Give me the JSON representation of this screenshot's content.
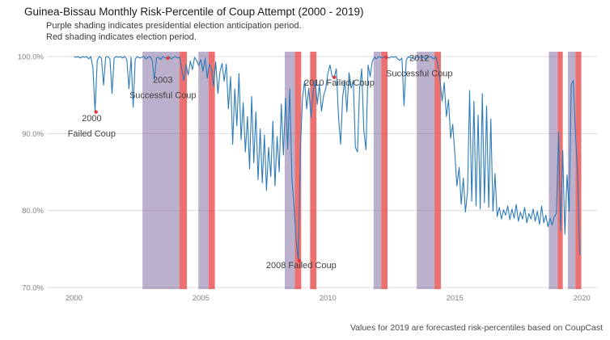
{
  "chart_data": {
    "type": "line",
    "title": "Guinea-Bissau Monthly Risk-Percentile of Coup Attempt (2000 - 2019)",
    "subtitle_line1": "Purple shading indicates presidential election anticipation period.",
    "subtitle_line2": "Red shading indicates election period.",
    "caption": "Values for 2019 are forecasted risk-percentiles based on CoupCast",
    "xlabel": "",
    "ylabel": "",
    "xlim": [
      1999,
      2020.6
    ],
    "ylim": [
      70,
      100
    ],
    "x_ticks": [
      2000,
      2005,
      2010,
      2015,
      2020
    ],
    "y_ticks": [
      "100.0%",
      "90.0%",
      "80.0%",
      "70.0%"
    ],
    "y_tick_values": [
      100,
      90,
      80,
      70
    ],
    "grid": "horizontal-only",
    "grid_color": "#dcdcdc",
    "line_color": "#2b7bb9",
    "event_dot_color": "#e4393c",
    "band_colors": {
      "purple": "rgba(106,81,145,0.45)",
      "red": "rgba(232,58,60,0.72)"
    },
    "series": {
      "name": "monthly-risk-percentile",
      "start_year": 2000,
      "interval_months": 1,
      "values": [
        100,
        99.9,
        100,
        99.8,
        100,
        99.9,
        100,
        99.7,
        100,
        98.5,
        92.8,
        99.5,
        100,
        99.8,
        96.3,
        99.9,
        100,
        99.7,
        95.2,
        99.8,
        100,
        99.9,
        100,
        99.8,
        100,
        99.6,
        95.8,
        99.9,
        93.4,
        99.7,
        100,
        99.8,
        99.9,
        100,
        99.7,
        99.9,
        100,
        99.5,
        97.0,
        99.8,
        99.9,
        99.6,
        100,
        99.8,
        99.9,
        100,
        99.7,
        99.9,
        100,
        99.8,
        99.9,
        98.2,
        96.9,
        99.0,
        97.6,
        99.4,
        98.3,
        99.9,
        99.5,
        98.8,
        99.6,
        98.1,
        99.8,
        97.2,
        99.0,
        98.4,
        96.1,
        99.3,
        95.2,
        98.0,
        99.1,
        96.8,
        99.0,
        93.2,
        97.4,
        88.6,
        95.8,
        91.0,
        97.8,
        89.2,
        94.0,
        87.6,
        92.2,
        85.4,
        94.8,
        86.2,
        92.8,
        84.0,
        90.6,
        83.6,
        89.8,
        82.6,
        88.2,
        84.4,
        91.6,
        83.2,
        89.6,
        85.0,
        93.8,
        87.2,
        94.6,
        88.0,
        95.8,
        84.2,
        80.6,
        76.2,
        73.5,
        87.8,
        94.6,
        96.8,
        93.2,
        95.9,
        92.1,
        95.4,
        96.9,
        93.8,
        96.4,
        92.9,
        94.9,
        95.9,
        97.8,
        98.9,
        97.4,
        97.3,
        98.4,
        92.2,
        88.6,
        94.8,
        96.9,
        92.8,
        97.9,
        95.9,
        96.9,
        88.2,
        87.6,
        95.9,
        98.4,
        90.4,
        87.9,
        98.9,
        97.4,
        99.4,
        99.9,
        99.7,
        100,
        99.9,
        99.8,
        100,
        99.9,
        99.8,
        100,
        99.9,
        100,
        99.7,
        99.5,
        99.8,
        93.6,
        99.5,
        100,
        99.8,
        99.9,
        99.6,
        100,
        99.9,
        99.8,
        100,
        99.7,
        99.9,
        100,
        99.9,
        99.7,
        100,
        98.9,
        96.9,
        94.2,
        96.6,
        92.2,
        94.4,
        89.4,
        91.2,
        87.4,
        83.2,
        85.6,
        80.8,
        84.2,
        79.8,
        82.4,
        95.6,
        81.2,
        94.2,
        80.6,
        92.4,
        80.2,
        95.2,
        81.0,
        93.6,
        80.4,
        91.9,
        79.9,
        84.8,
        79.2,
        80.4,
        78.9,
        80.1,
        79.4,
        80.6,
        78.8,
        80.2,
        79.0,
        80.8,
        78.6,
        79.8,
        78.9,
        80.4,
        78.4,
        79.6,
        78.9,
        80.2,
        78.6,
        79.9,
        78.2,
        80.6,
        78.4,
        79.4,
        77.9,
        79.0,
        78.1,
        79.2,
        79.6,
        90.2,
        77.4,
        87.8,
        76.9,
        84.6,
        79.9,
        96.4,
        96.9,
        89.9,
        84.9,
        74.2
      ]
    },
    "bands": [
      {
        "color": "purple",
        "x0": 2002.7,
        "x1": 2004.15
      },
      {
        "color": "red",
        "x0": 2004.15,
        "x1": 2004.45
      },
      {
        "color": "purple",
        "x0": 2004.9,
        "x1": 2005.3
      },
      {
        "color": "red",
        "x0": 2005.3,
        "x1": 2005.55
      },
      {
        "color": "purple",
        "x0": 2008.3,
        "x1": 2008.7
      },
      {
        "color": "red",
        "x0": 2008.7,
        "x1": 2008.95
      },
      {
        "color": "red",
        "x0": 2009.3,
        "x1": 2009.55
      },
      {
        "color": "purple",
        "x0": 2011.8,
        "x1": 2012.1
      },
      {
        "color": "red",
        "x0": 2012.1,
        "x1": 2012.35
      },
      {
        "color": "purple",
        "x0": 2013.5,
        "x1": 2014.2
      },
      {
        "color": "red",
        "x0": 2014.2,
        "x1": 2014.45
      },
      {
        "color": "purple",
        "x0": 2018.7,
        "x1": 2019.05
      },
      {
        "color": "red",
        "x0": 2019.05,
        "x1": 2019.25
      },
      {
        "color": "purple",
        "x0": 2019.45,
        "x1": 2019.75
      },
      {
        "color": "red",
        "x0": 2019.75,
        "x1": 2019.98
      }
    ],
    "events": [
      {
        "name": "2000-failed-coup",
        "label_lines": [
          "2000",
          "Failed Coup"
        ],
        "dot": {
          "x": 2000.87,
          "y": 92.8
        },
        "label": {
          "x": 2000.7,
          "y": 91.6
        }
      },
      {
        "name": "2003-successful-coup",
        "label_lines": [
          "2003",
          "Successful Coup"
        ],
        "dot": {
          "x": 2003.7,
          "y": 99.8
        },
        "label": {
          "x": 2003.5,
          "y": 96.6
        }
      },
      {
        "name": "2008-failed-coup",
        "label_lines": [
          "2008 Failed Coup"
        ],
        "dot": {
          "x": 2008.87,
          "y": 73.5
        },
        "label": {
          "x": 2008.95,
          "y": 72.5
        }
      },
      {
        "name": "2010-failed-coup",
        "label_lines": [
          "2010 Failed Coup"
        ],
        "dot": {
          "x": 2010.25,
          "y": 97.3
        },
        "label": {
          "x": 2010.45,
          "y": 96.2
        }
      },
      {
        "name": "2012-successful-coup",
        "label_lines": [
          "2012",
          "Successful Coup"
        ],
        "dot": {
          "x": 2012.3,
          "y": 99.9
        },
        "label": {
          "x": 2013.6,
          "y": 99.4
        }
      }
    ]
  }
}
